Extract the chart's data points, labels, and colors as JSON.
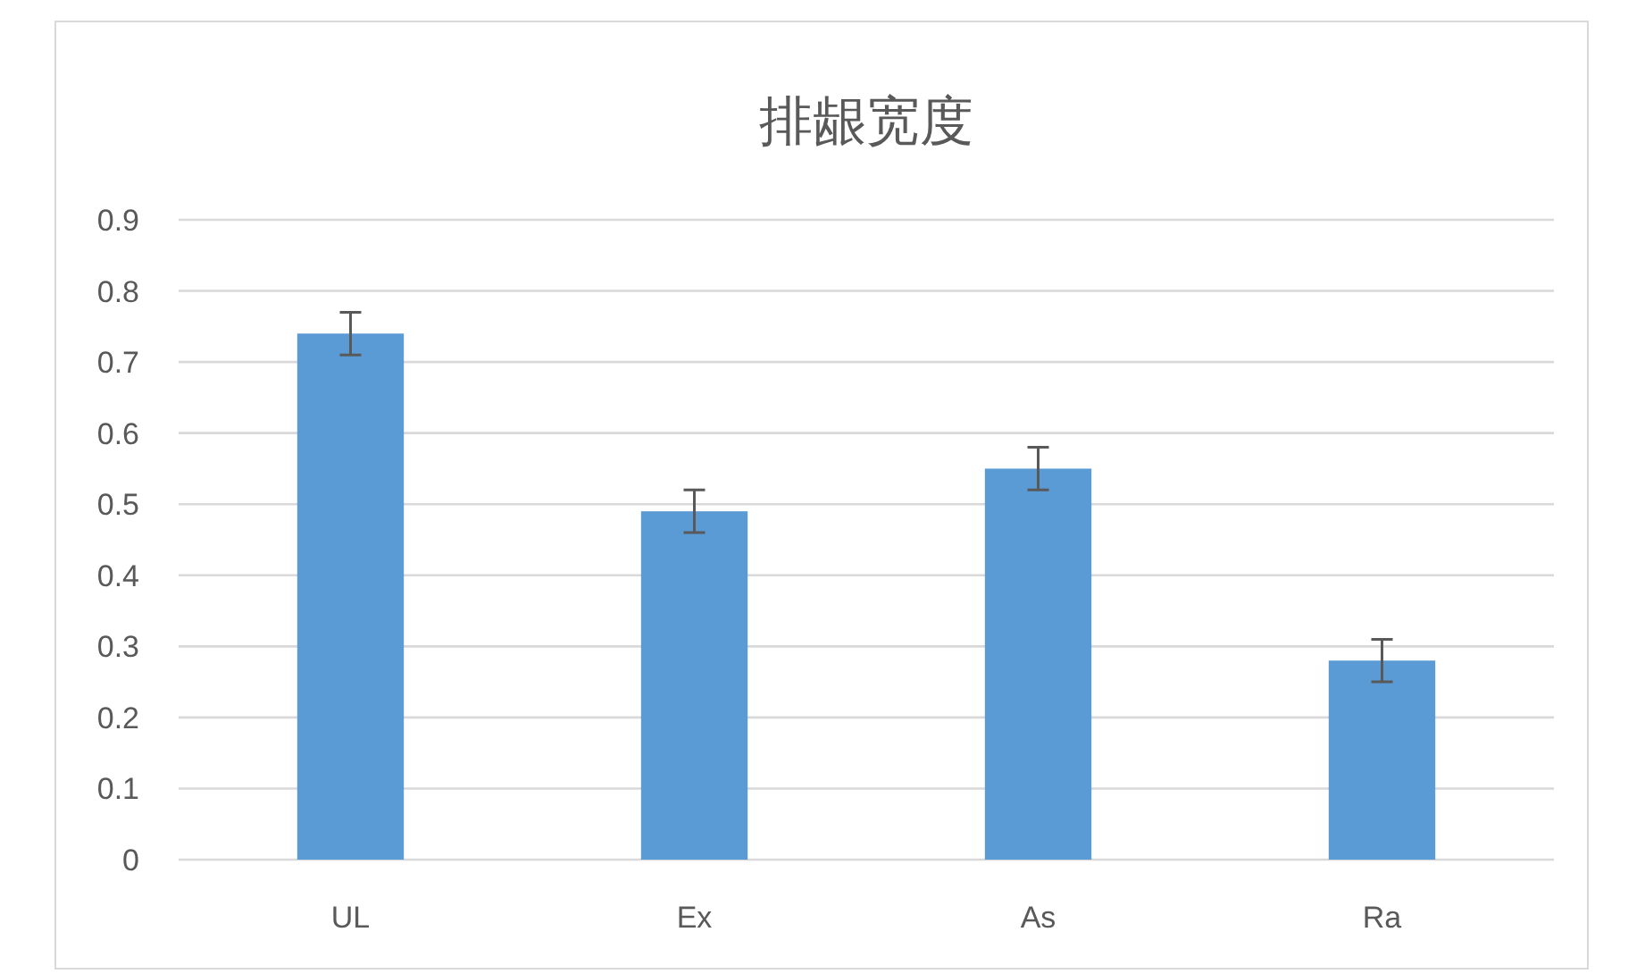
{
  "chart_data": {
    "type": "bar",
    "title": "排龈宽度",
    "categories": [
      "UL",
      "Ex",
      "As",
      "Ra"
    ],
    "values": [
      0.74,
      0.49,
      0.55,
      0.28
    ],
    "errors": [
      0.03,
      0.03,
      0.03,
      0.03
    ],
    "color": "#5b9bd5",
    "ylim": [
      0,
      0.9
    ],
    "yticks": [
      0,
      0.1,
      0.2,
      0.3,
      0.4,
      0.5,
      0.6,
      0.7,
      0.8,
      0.9
    ],
    "grid": "y"
  }
}
